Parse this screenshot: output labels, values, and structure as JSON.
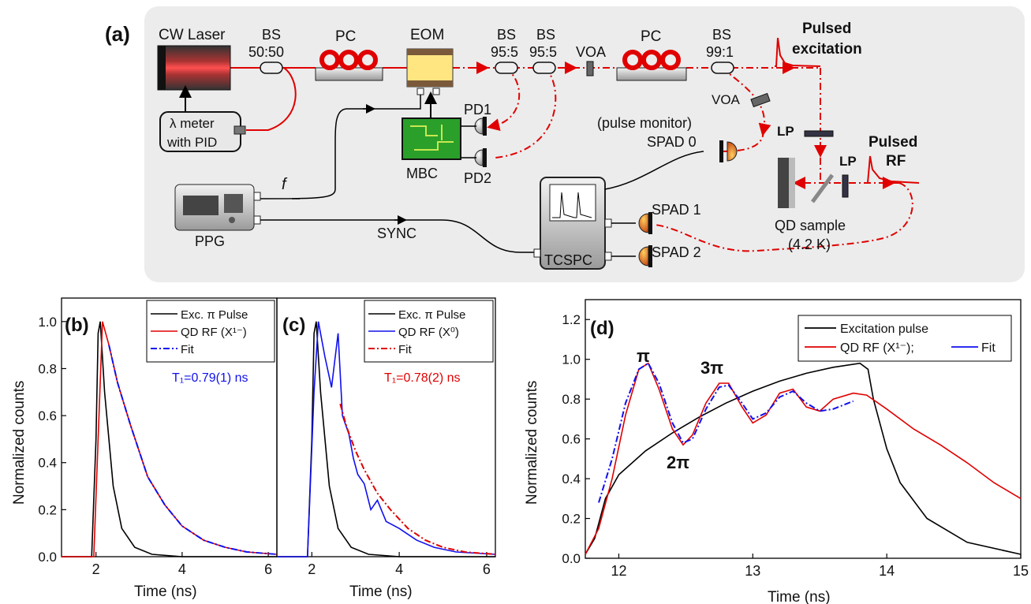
{
  "panel_a": {
    "label": "(a)",
    "components": {
      "cw_laser": "CW Laser",
      "bs1_top": "BS",
      "bs1_bot": "50:50",
      "pc1": "PC",
      "eom": "EOM",
      "bs2_top": "BS",
      "bs2_bot": "95:5",
      "bs3_top": "BS",
      "bs3_bot": "95:5",
      "voa1": "VOA",
      "pc2": "PC",
      "bs4_top": "BS",
      "bs4_bot": "99:1",
      "pulsed_exc_1": "Pulsed",
      "pulsed_exc_2": "excitation",
      "lambda_1": "λ meter",
      "lambda_2": "with PID",
      "voa2": "VOA",
      "pd1": "PD1",
      "pd2": "PD2",
      "mbc": "MBC",
      "pulse_monitor": "(pulse monitor)",
      "spad0": "SPAD 0",
      "lp1": "LP",
      "lp2": "LP",
      "pulsed_rf_1": "Pulsed",
      "pulsed_rf_2": "RF",
      "f": "f",
      "ppg": "PPG",
      "sync": "SYNC",
      "spad1": "SPAD 1",
      "spad2": "SPAD 2",
      "tcspc": "TCSPC",
      "qd_1": "QD sample",
      "qd_2": "(4.2 K)"
    }
  },
  "chart_data": [
    {
      "panel": "(b)",
      "type": "line",
      "xlabel": "Time (ns)",
      "ylabel": "Normalized counts",
      "xlim": [
        1.2,
        6.2
      ],
      "ylim": [
        0,
        1.1
      ],
      "xticks": [
        "2",
        "4",
        "6"
      ],
      "yticks": [
        "0.0",
        "0.2",
        "0.4",
        "0.6",
        "0.8",
        "1.0"
      ],
      "legend": [
        "Exc. π Pulse",
        "QD RF (X¹⁻)",
        "Fit"
      ],
      "annotation": "T₁=0.79(1) ns",
      "colors": {
        "excitation": "#000000",
        "rf": "#e00000",
        "fit": "#1010ee"
      },
      "series": [
        {
          "name": "Exc. π Pulse",
          "x": [
            1.2,
            1.9,
            2.0,
            2.05,
            2.1,
            2.2,
            2.4,
            2.6,
            2.9,
            3.3,
            4.0,
            6.2
          ],
          "y": [
            0,
            0,
            0.5,
            0.95,
            1.0,
            0.7,
            0.3,
            0.12,
            0.04,
            0.01,
            0,
            0
          ]
        },
        {
          "name": "QD RF (X¹⁻)",
          "x": [
            1.2,
            1.95,
            2.05,
            2.15,
            2.3,
            2.5,
            2.8,
            3.2,
            3.6,
            4.0,
            4.5,
            5.0,
            5.5,
            6.2
          ],
          "y": [
            0,
            0,
            0.5,
            1.0,
            0.9,
            0.74,
            0.56,
            0.34,
            0.22,
            0.13,
            0.07,
            0.04,
            0.02,
            0.01
          ]
        },
        {
          "name": "Fit",
          "x": [
            2.3,
            2.5,
            2.8,
            3.2,
            3.6,
            4.0,
            4.5,
            5.0,
            5.5,
            6.2
          ],
          "y": [
            0.9,
            0.74,
            0.56,
            0.34,
            0.22,
            0.13,
            0.07,
            0.04,
            0.02,
            0.01
          ]
        }
      ]
    },
    {
      "panel": "(c)",
      "type": "line",
      "xlabel": "Time (ns)",
      "xlim": [
        1.2,
        6.2
      ],
      "ylim": [
        0,
        1.1
      ],
      "xticks": [
        "2",
        "4",
        "6"
      ],
      "legend": [
        "Exc. π Pulse",
        "QD RF (X⁰)",
        "Fit"
      ],
      "annotation": "T₁=0.78(2) ns",
      "colors": {
        "excitation": "#000000",
        "rf": "#1010ee",
        "fit": "#e00000"
      },
      "series": [
        {
          "name": "Exc. π Pulse",
          "x": [
            1.2,
            1.9,
            2.0,
            2.05,
            2.1,
            2.2,
            2.4,
            2.6,
            2.9,
            3.3,
            4.0,
            6.2
          ],
          "y": [
            0,
            0,
            0.5,
            0.95,
            1.0,
            0.7,
            0.3,
            0.12,
            0.04,
            0.01,
            0,
            0
          ]
        },
        {
          "name": "QD RF (X⁰)",
          "x": [
            1.2,
            1.9,
            2.05,
            2.15,
            2.3,
            2.45,
            2.6,
            2.7,
            2.85,
            2.95,
            3.05,
            3.2,
            3.35,
            3.5,
            3.7,
            4.0,
            4.4,
            4.8,
            5.3,
            6.2
          ],
          "y": [
            0,
            0,
            0.7,
            1.0,
            0.85,
            0.72,
            0.95,
            0.6,
            0.52,
            0.42,
            0.35,
            0.31,
            0.2,
            0.24,
            0.15,
            0.12,
            0.07,
            0.04,
            0.02,
            0.01
          ]
        },
        {
          "name": "Fit",
          "x": [
            2.65,
            2.8,
            3.0,
            3.2,
            3.5,
            3.8,
            4.2,
            4.6,
            5.0,
            5.5,
            6.2
          ],
          "y": [
            0.65,
            0.55,
            0.45,
            0.37,
            0.27,
            0.2,
            0.12,
            0.07,
            0.04,
            0.02,
            0.01
          ]
        }
      ]
    },
    {
      "panel": "(d)",
      "type": "line",
      "xlabel": "Time (ns)",
      "ylabel": "Normalized counts",
      "xlim": [
        11.75,
        15
      ],
      "ylim": [
        0,
        1.3
      ],
      "xticks": [
        "12",
        "13",
        "14",
        "15"
      ],
      "yticks": [
        "0.0",
        "0.2",
        "0.4",
        "0.6",
        "0.8",
        "1.0",
        "1.2"
      ],
      "legend": [
        "Excitation pulse",
        "QD RF (X¹⁻);",
        "Fit"
      ],
      "annotations": [
        "π",
        "2π",
        "3π"
      ],
      "colors": {
        "excitation": "#000000",
        "rf": "#e00000",
        "fit": "#1010ee"
      },
      "series": [
        {
          "name": "Excitation pulse",
          "x": [
            11.75,
            11.82,
            11.9,
            12.0,
            12.2,
            12.4,
            12.6,
            12.8,
            13.0,
            13.2,
            13.4,
            13.6,
            13.8,
            13.86,
            13.9,
            14.0,
            14.1,
            14.3,
            14.6,
            15.0
          ],
          "y": [
            0.02,
            0.1,
            0.3,
            0.42,
            0.54,
            0.63,
            0.71,
            0.78,
            0.84,
            0.89,
            0.93,
            0.96,
            0.98,
            0.95,
            0.8,
            0.55,
            0.38,
            0.2,
            0.08,
            0.02
          ]
        },
        {
          "name": "QD RF (X¹⁻);",
          "x": [
            11.75,
            11.85,
            11.95,
            12.05,
            12.15,
            12.22,
            12.3,
            12.4,
            12.48,
            12.55,
            12.65,
            12.75,
            12.82,
            12.92,
            13.0,
            13.1,
            13.2,
            13.3,
            13.4,
            13.5,
            13.6,
            13.75,
            13.85,
            14.0,
            14.2,
            14.4,
            14.6,
            14.8,
            15.0
          ],
          "y": [
            0.02,
            0.15,
            0.4,
            0.72,
            0.95,
            0.98,
            0.85,
            0.65,
            0.57,
            0.62,
            0.78,
            0.88,
            0.88,
            0.76,
            0.68,
            0.72,
            0.83,
            0.85,
            0.76,
            0.74,
            0.8,
            0.83,
            0.82,
            0.75,
            0.65,
            0.57,
            0.48,
            0.38,
            0.3
          ]
        },
        {
          "name": "Fit",
          "x": [
            11.85,
            11.95,
            12.05,
            12.15,
            12.22,
            12.3,
            12.4,
            12.48,
            12.55,
            12.65,
            12.75,
            12.82,
            12.92,
            13.0,
            13.1,
            13.2,
            13.3,
            13.4,
            13.5,
            13.6,
            13.75
          ],
          "y": [
            0.28,
            0.5,
            0.78,
            0.95,
            0.98,
            0.88,
            0.68,
            0.58,
            0.6,
            0.75,
            0.86,
            0.87,
            0.78,
            0.7,
            0.73,
            0.81,
            0.84,
            0.78,
            0.74,
            0.75,
            0.79
          ]
        }
      ]
    }
  ]
}
